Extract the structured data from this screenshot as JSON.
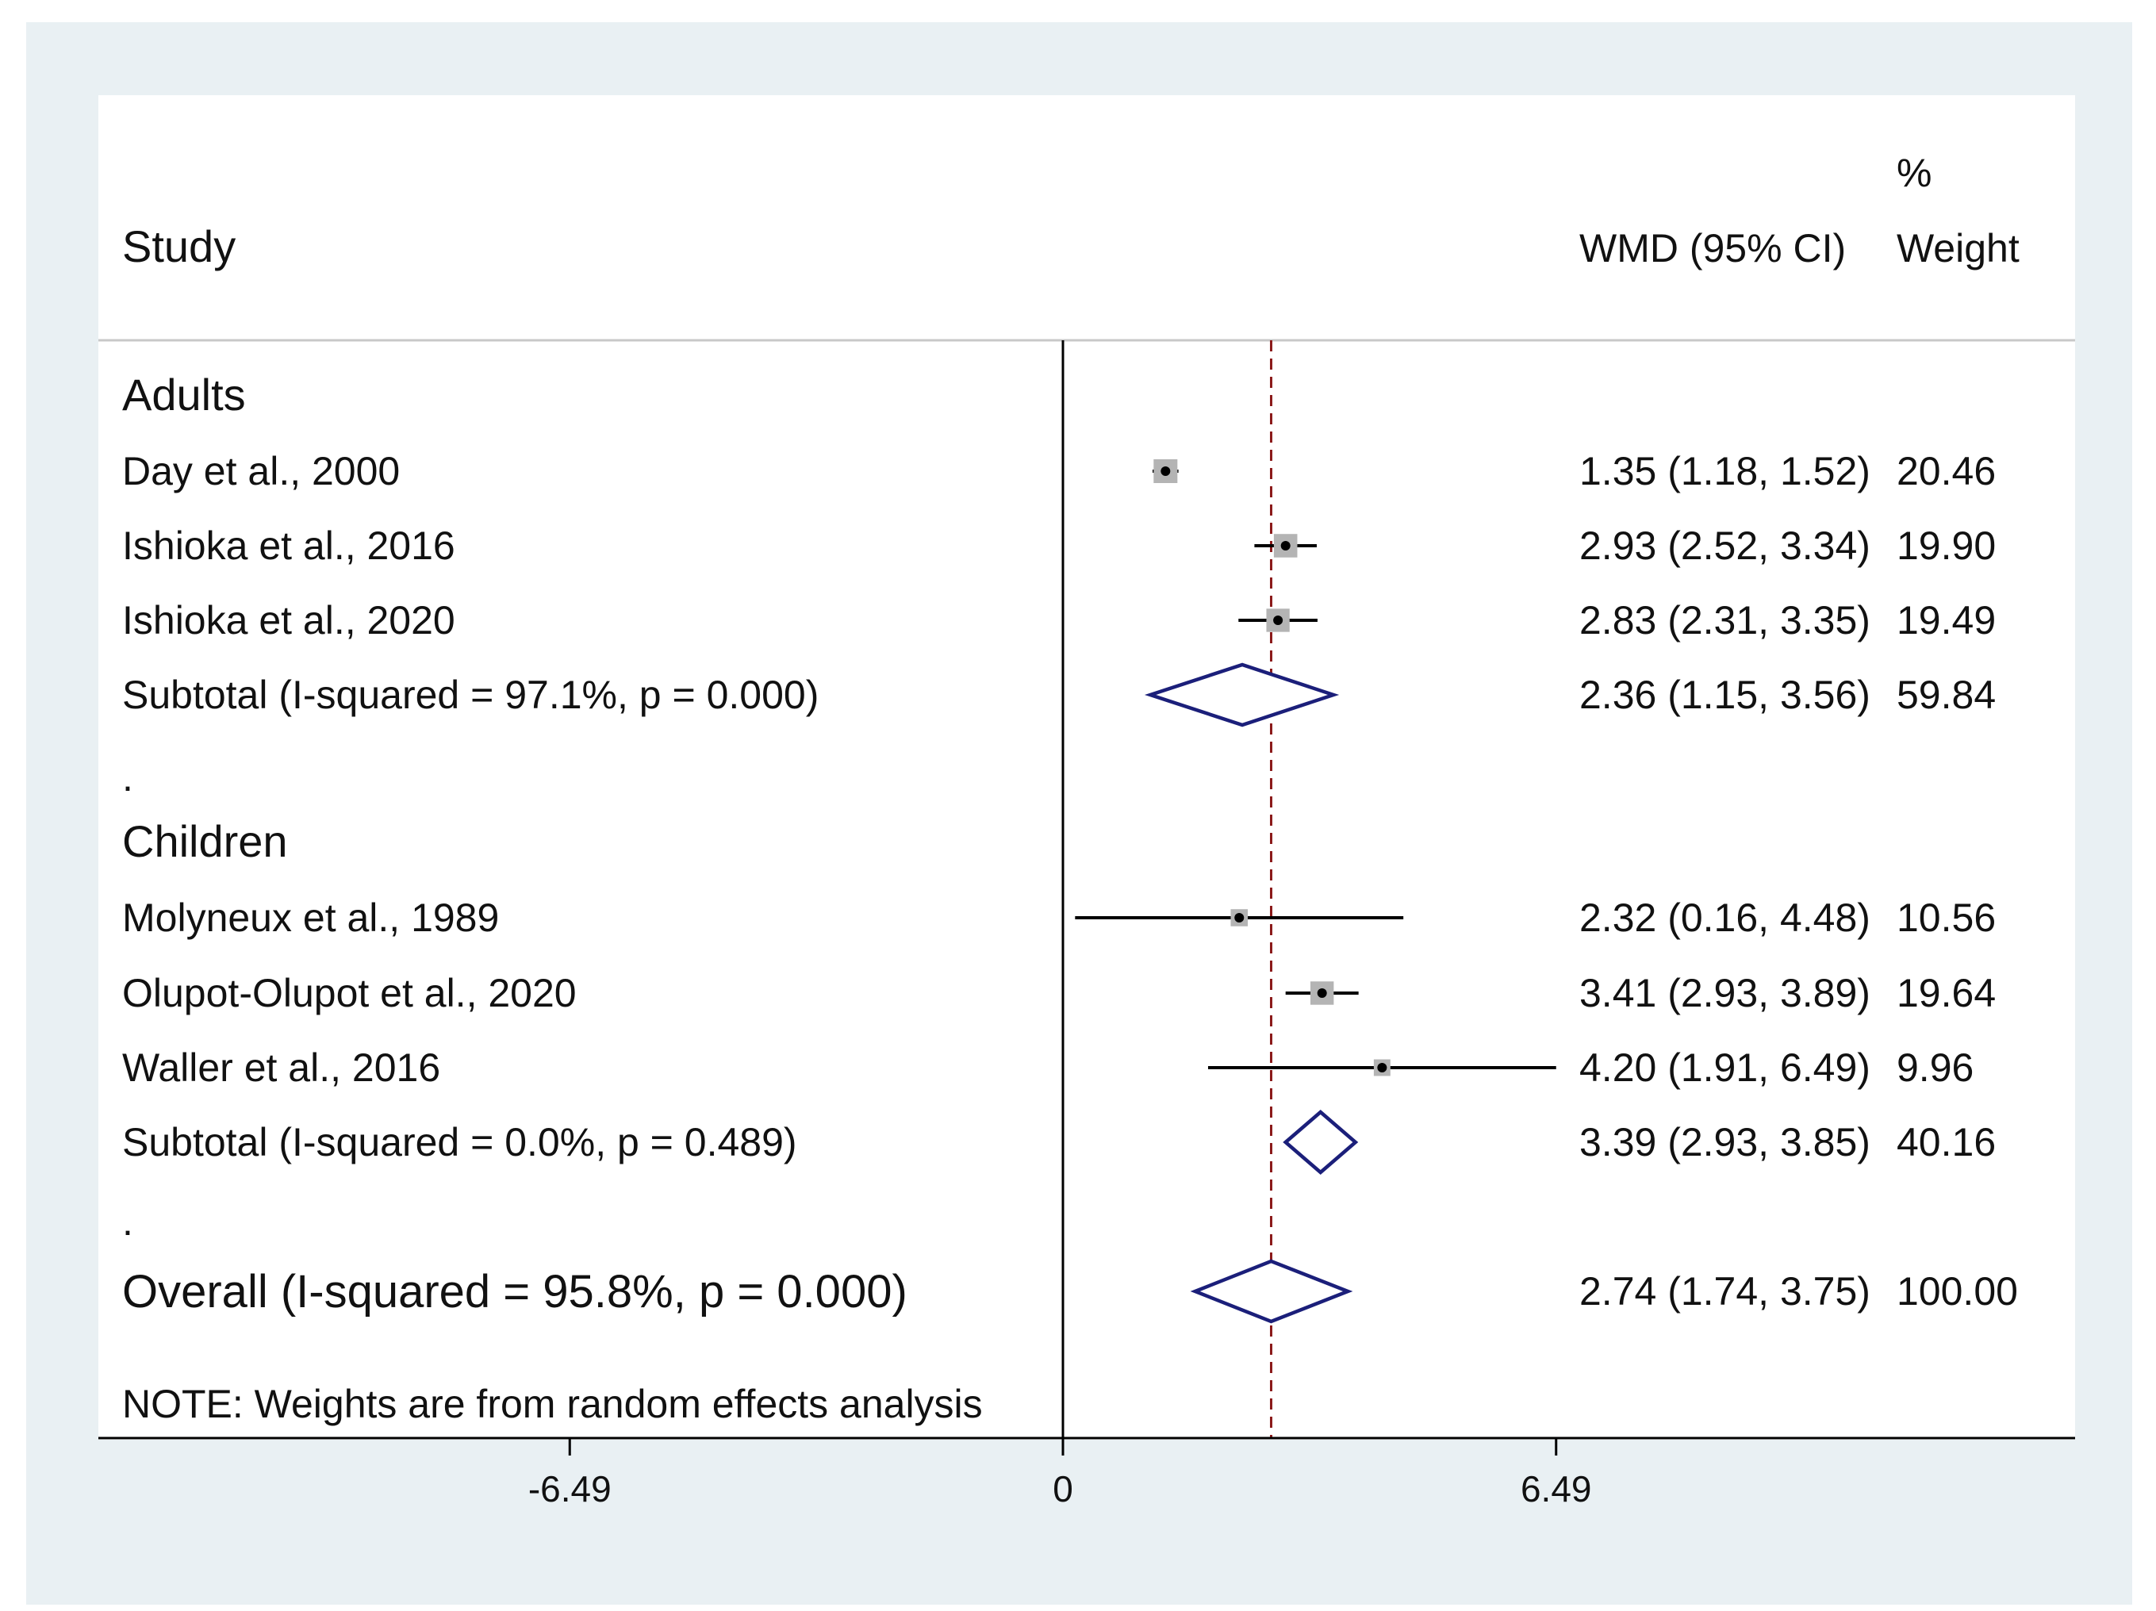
{
  "chart_data": {
    "type": "forest",
    "headers": {
      "study": "Study",
      "effect": "WMD (95% CI)",
      "weight_top": "%",
      "weight": "Weight"
    },
    "x_ticks": [
      -6.49,
      0,
      6.49
    ],
    "x_tick_labels": [
      "-6.49",
      "0",
      "6.49"
    ],
    "null_value": 0,
    "overall_value": 2.74,
    "colors": {
      "reference_line": "#8b1a1a",
      "diamond": "#1b1f7a",
      "box": "#b4b4b4",
      "background": "#e9f0f3"
    },
    "rows": [
      {
        "kind": "group",
        "label": "Adults"
      },
      {
        "kind": "study",
        "label": "Day et al., 2000",
        "est": 1.35,
        "lo": 1.18,
        "hi": 1.52,
        "ci_text": "1.35 (1.18, 1.52)",
        "weight": 20.46,
        "weight_text": "20.46"
      },
      {
        "kind": "study",
        "label": "Ishioka et al., 2016",
        "est": 2.93,
        "lo": 2.52,
        "hi": 3.34,
        "ci_text": "2.93 (2.52, 3.34)",
        "weight": 19.9,
        "weight_text": "19.90"
      },
      {
        "kind": "study",
        "label": "Ishioka et al., 2020",
        "est": 2.83,
        "lo": 2.31,
        "hi": 3.35,
        "ci_text": "2.83 (2.31, 3.35)",
        "weight": 19.49,
        "weight_text": "19.49"
      },
      {
        "kind": "subtotal",
        "label": "Subtotal  (I-squared = 97.1%, p = 0.000)",
        "est": 2.36,
        "lo": 1.15,
        "hi": 3.56,
        "ci_text": "2.36 (1.15, 3.56)",
        "weight": 59.84,
        "weight_text": "59.84"
      },
      {
        "kind": "dot",
        "label": "."
      },
      {
        "kind": "group",
        "label": "Children"
      },
      {
        "kind": "study",
        "label": "Molyneux et al., 1989",
        "est": 2.32,
        "lo": 0.16,
        "hi": 4.48,
        "ci_text": "2.32 (0.16, 4.48)",
        "weight": 10.56,
        "weight_text": "10.56"
      },
      {
        "kind": "study",
        "label": "Olupot-Olupot et al., 2020",
        "est": 3.41,
        "lo": 2.93,
        "hi": 3.89,
        "ci_text": "3.41 (2.93, 3.89)",
        "weight": 19.64,
        "weight_text": "19.64"
      },
      {
        "kind": "study",
        "label": "Waller et al., 2016",
        "est": 4.2,
        "lo": 1.91,
        "hi": 6.49,
        "ci_text": "4.20 (1.91, 6.49)",
        "weight": 9.96,
        "weight_text": "9.96"
      },
      {
        "kind": "subtotal",
        "label": "Subtotal  (I-squared = 0.0%, p = 0.489)",
        "est": 3.39,
        "lo": 2.93,
        "hi": 3.85,
        "ci_text": "3.39 (2.93, 3.85)",
        "weight": 40.16,
        "weight_text": "40.16"
      },
      {
        "kind": "dot",
        "label": "."
      },
      {
        "kind": "overall",
        "label": "Overall  (I-squared = 95.8%, p = 0.000)",
        "est": 2.74,
        "lo": 1.74,
        "hi": 3.75,
        "ci_text": "2.74 (1.74, 3.75)",
        "weight": 100.0,
        "weight_text": "100.00"
      }
    ],
    "note": "NOTE: Weights are from random effects analysis"
  }
}
